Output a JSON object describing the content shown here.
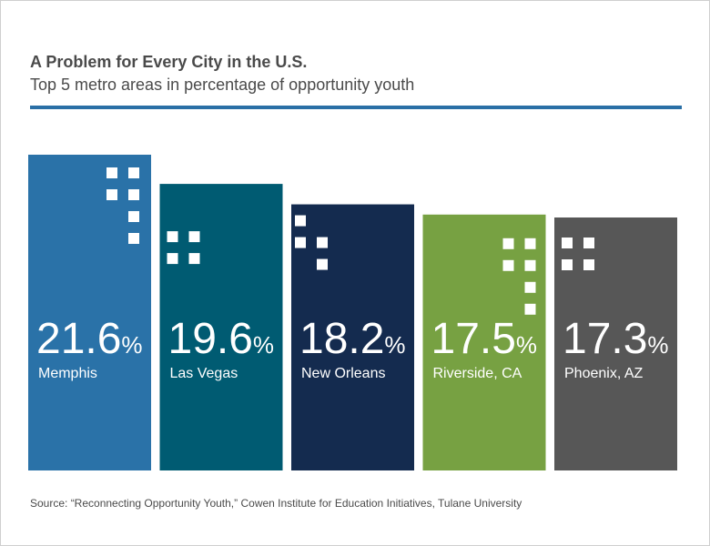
{
  "title": "A Problem for Every City in the U.S.",
  "subtitle": "Top 5 metro areas in percentage of opportunity youth",
  "source": "Source: “Reconnecting Opportunity Youth,” Cowen Institute for Education Initiatives, Tulane University",
  "colors": {
    "rule": "#2a6fa6",
    "bars": [
      "#2a72a8",
      "#005b72",
      "#142b4f",
      "#77a142",
      "#575757"
    ],
    "text": "#4a4a4a"
  },
  "chart_data": {
    "type": "bar",
    "title": "A Problem for Every City in the U.S.",
    "subtitle": "Top 5 metro areas in percentage of opportunity youth",
    "unit": "%",
    "categories": [
      "Memphis",
      "Las Vegas",
      "New Orleans",
      "Riverside, CA",
      "Phoenix, AZ"
    ],
    "values": [
      21.6,
      19.6,
      18.2,
      17.5,
      17.3
    ],
    "value_labels": [
      "21.6",
      "19.6",
      "18.2",
      "17.5",
      "17.3"
    ],
    "xlabel": "",
    "ylabel": "",
    "grid": false,
    "legend": "none"
  }
}
